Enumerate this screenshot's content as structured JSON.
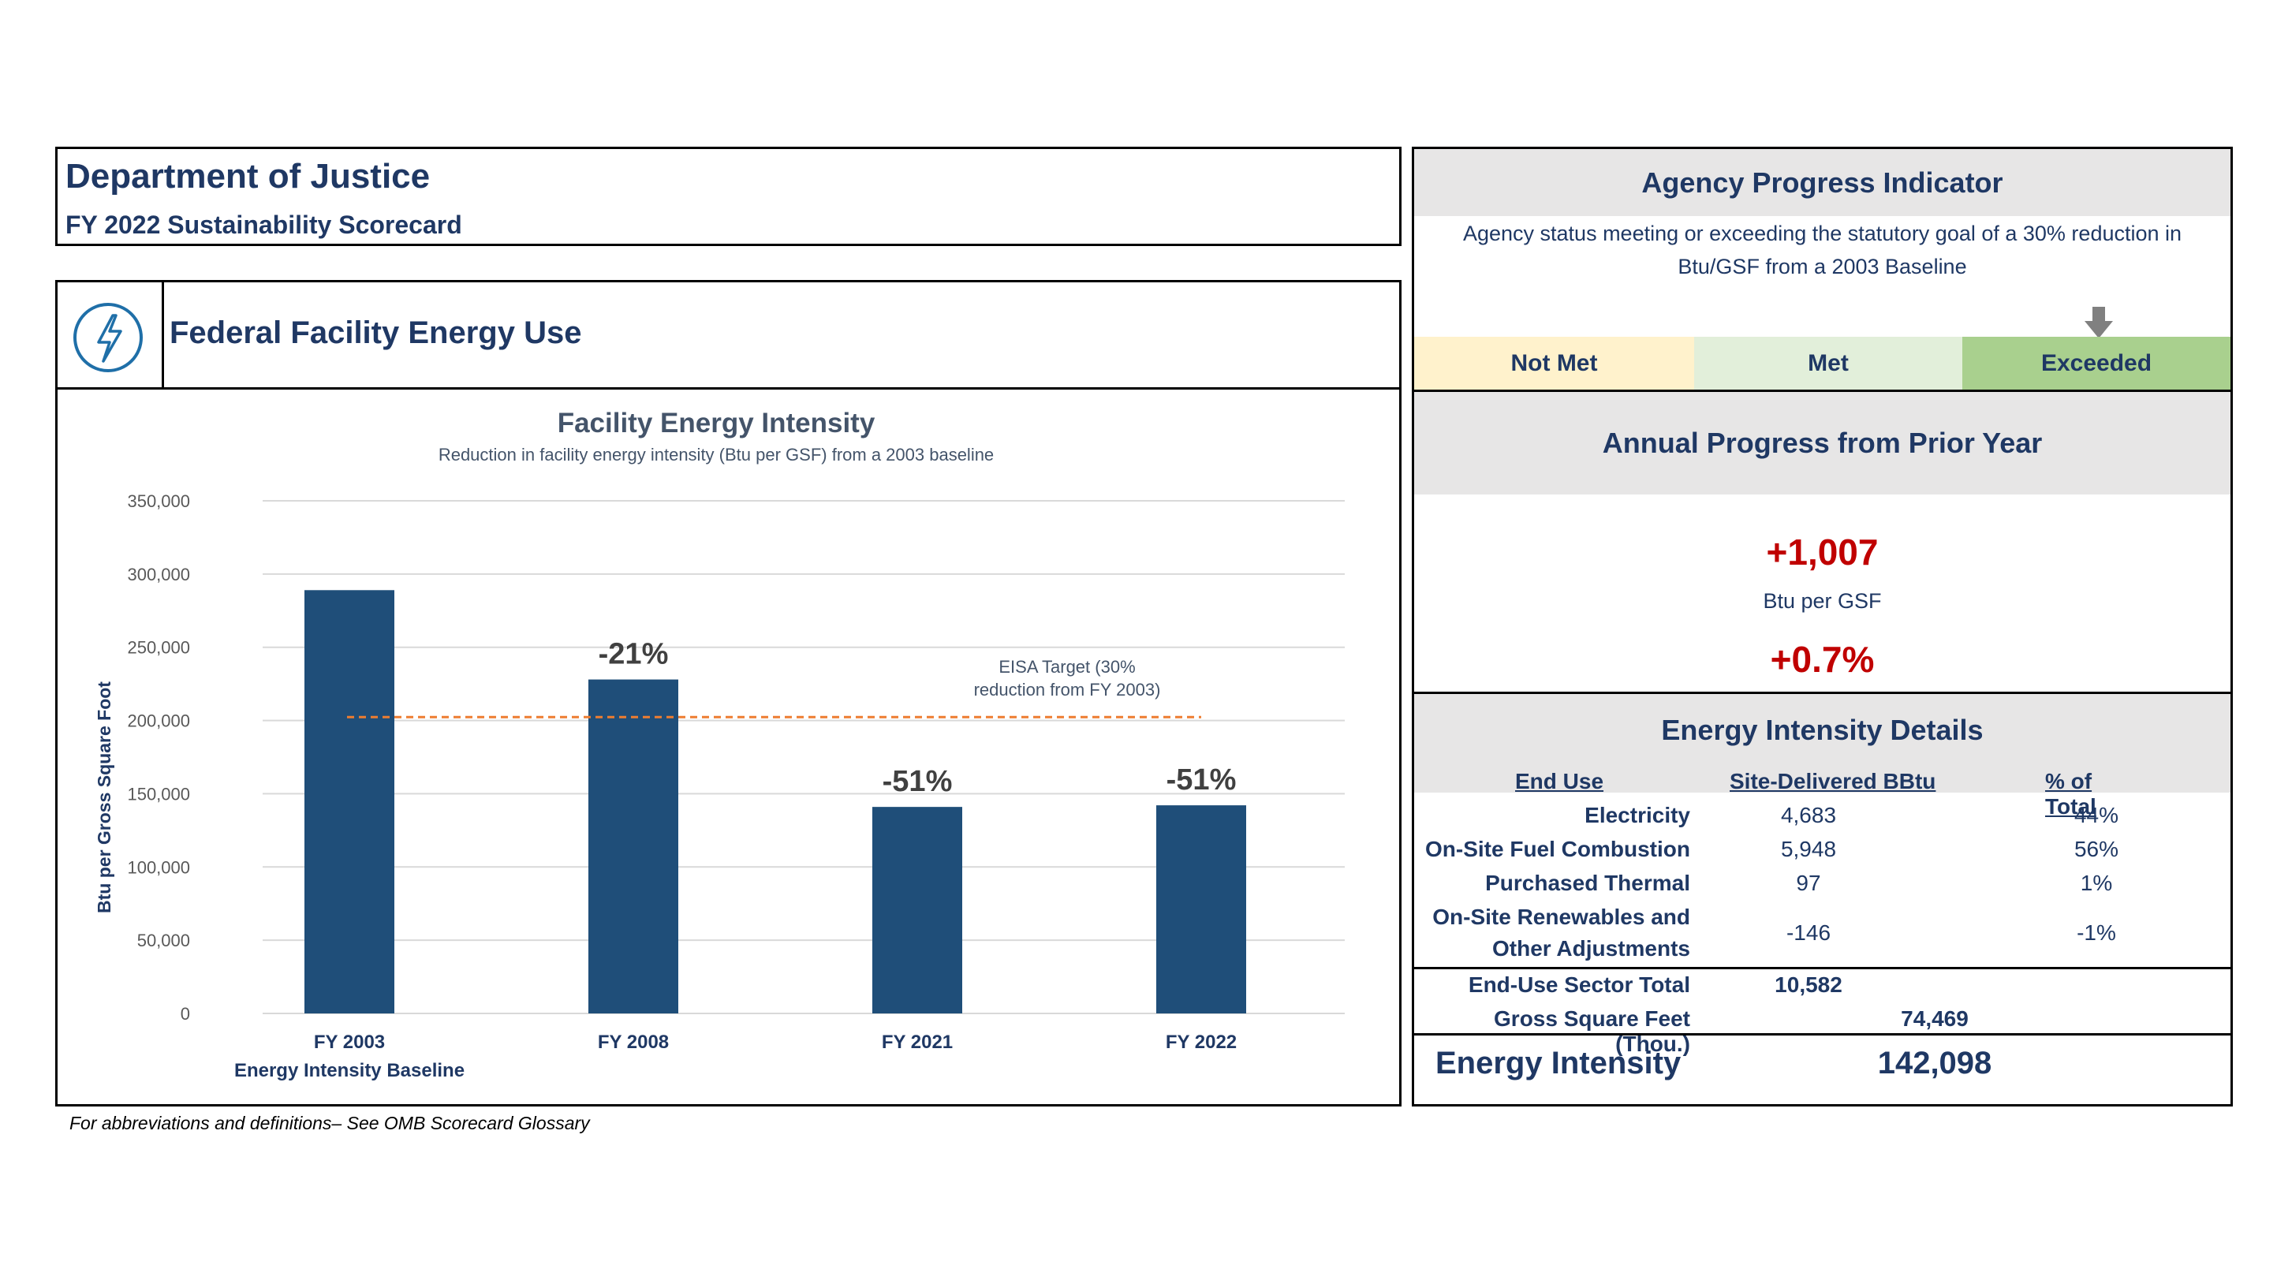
{
  "header": {
    "department": "Department of Justice",
    "scorecard": "FY 2022 Sustainability Scorecard"
  },
  "section": {
    "title": "Federal Facility Energy Use",
    "icon": "lightning-icon"
  },
  "chart_data": {
    "type": "bar",
    "title": "Facility Energy Intensity",
    "subtitle": "Reduction in facility energy intensity (Btu per GSF) from a 2003 baseline",
    "ylabel": "Btu per Gross Square Foot",
    "ylim": [
      0,
      350000
    ],
    "yticks": [
      "350,000",
      "300,000",
      "250,000",
      "200,000",
      "150,000",
      "100,000",
      "50,000",
      "0"
    ],
    "categories": [
      "FY 2003",
      "FY 2008",
      "FY 2021",
      "FY 2022"
    ],
    "category_sublabels": [
      "Energy Intensity Baseline",
      "",
      "",
      ""
    ],
    "values": [
      289000,
      228000,
      141000,
      142098
    ],
    "data_labels": [
      "",
      "-21%",
      "-51%",
      "-51%"
    ],
    "target_line": {
      "value": 202300,
      "label_line1": "EISA Target (30%",
      "label_line2": "reduction from FY 2003)"
    },
    "grid": true,
    "colors": {
      "bar": "#1f4e79",
      "target": "#ed7d31",
      "grid": "#d9d9d9"
    }
  },
  "progress_indicator": {
    "title": "Agency Progress Indicator",
    "description_line1": "Agency status meeting or exceeding the statutory goal of a 30% reduction in",
    "description_line2": "Btu/GSF from a 2003 Baseline",
    "levels": [
      "Not Met",
      "Met",
      "Exceeded"
    ],
    "selected": "Exceeded",
    "marker_icon": "arrow-down-icon",
    "colors": {
      "not_met": "#fff2cc",
      "met": "#e2efda",
      "exceeded": "#a9d08e"
    }
  },
  "annual_progress": {
    "title": "Annual Progress from Prior Year",
    "change_value": "+1,007",
    "change_unit": "Btu per GSF",
    "change_percent": "+0.7%"
  },
  "details": {
    "title": "Energy Intensity Details",
    "columns": [
      "End Use",
      "Site-Delivered BBtu",
      "% of Total"
    ],
    "rows": [
      {
        "end_use": "Electricity",
        "bbtu": "4,683",
        "pct": "44%"
      },
      {
        "end_use": "On-Site Fuel Combustion",
        "bbtu": "5,948",
        "pct": "56%"
      },
      {
        "end_use": "Purchased Thermal",
        "bbtu": "97",
        "pct": "1%"
      },
      {
        "end_use_line1": "On-Site Renewables and",
        "end_use_line2": "Other Adjustments",
        "bbtu": "-146",
        "pct": "-1%"
      }
    ],
    "sector_total_label": "End-Use Sector Total",
    "sector_total_value": "10,582",
    "gsf_label": "Gross Square Feet (Thou.)",
    "gsf_value": "74,469",
    "intensity_label": "Energy Intensity",
    "intensity_value": "142,098"
  },
  "footnote": "For abbreviations and definitions– See OMB Scorecard Glossary"
}
